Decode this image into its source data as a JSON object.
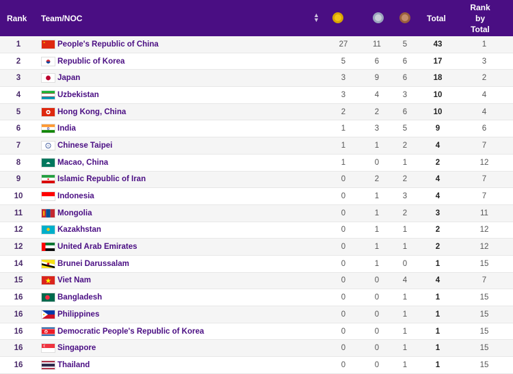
{
  "header": {
    "rank": "Rank",
    "team": "Team/NOC",
    "total": "Total",
    "rank_by_total_1": "Rank",
    "rank_by_total_2": "by",
    "rank_by_total_3": "Total",
    "gold_color": "#f2c315",
    "silver_color": "#c9cfd9",
    "bronze_color": "#c58d6b"
  },
  "rows": [
    {
      "rank": "1",
      "team": "People's Republic of China",
      "gold": "27",
      "silver": "11",
      "bronze": "5",
      "total": "43",
      "rbt": "1",
      "flag": "china"
    },
    {
      "rank": "2",
      "team": "Republic of Korea",
      "gold": "5",
      "silver": "6",
      "bronze": "6",
      "total": "17",
      "rbt": "3",
      "flag": "korea"
    },
    {
      "rank": "3",
      "team": "Japan",
      "gold": "3",
      "silver": "9",
      "bronze": "6",
      "total": "18",
      "rbt": "2",
      "flag": "japan"
    },
    {
      "rank": "4",
      "team": "Uzbekistan",
      "gold": "3",
      "silver": "4",
      "bronze": "3",
      "total": "10",
      "rbt": "4",
      "flag": "uzbekistan"
    },
    {
      "rank": "5",
      "team": "Hong Kong, China",
      "gold": "2",
      "silver": "2",
      "bronze": "6",
      "total": "10",
      "rbt": "4",
      "flag": "hongkong"
    },
    {
      "rank": "6",
      "team": "India",
      "gold": "1",
      "silver": "3",
      "bronze": "5",
      "total": "9",
      "rbt": "6",
      "flag": "india"
    },
    {
      "rank": "7",
      "team": "Chinese Taipei",
      "gold": "1",
      "silver": "1",
      "bronze": "2",
      "total": "4",
      "rbt": "7",
      "flag": "taipei"
    },
    {
      "rank": "8",
      "team": "Macao, China",
      "gold": "1",
      "silver": "0",
      "bronze": "1",
      "total": "2",
      "rbt": "12",
      "flag": "macao"
    },
    {
      "rank": "9",
      "team": "Islamic Republic of Iran",
      "gold": "0",
      "silver": "2",
      "bronze": "2",
      "total": "4",
      "rbt": "7",
      "flag": "iran"
    },
    {
      "rank": "10",
      "team": "Indonesia",
      "gold": "0",
      "silver": "1",
      "bronze": "3",
      "total": "4",
      "rbt": "7",
      "flag": "indonesia"
    },
    {
      "rank": "11",
      "team": "Mongolia",
      "gold": "0",
      "silver": "1",
      "bronze": "2",
      "total": "3",
      "rbt": "11",
      "flag": "mongolia"
    },
    {
      "rank": "12",
      "team": "Kazakhstan",
      "gold": "0",
      "silver": "1",
      "bronze": "1",
      "total": "2",
      "rbt": "12",
      "flag": "kazakhstan"
    },
    {
      "rank": "12",
      "team": "United Arab Emirates",
      "gold": "0",
      "silver": "1",
      "bronze": "1",
      "total": "2",
      "rbt": "12",
      "flag": "uae"
    },
    {
      "rank": "14",
      "team": "Brunei Darussalam",
      "gold": "0",
      "silver": "1",
      "bronze": "0",
      "total": "1",
      "rbt": "15",
      "flag": "brunei"
    },
    {
      "rank": "15",
      "team": "Viet Nam",
      "gold": "0",
      "silver": "0",
      "bronze": "4",
      "total": "4",
      "rbt": "7",
      "flag": "vietnam"
    },
    {
      "rank": "16",
      "team": "Bangladesh",
      "gold": "0",
      "silver": "0",
      "bronze": "1",
      "total": "1",
      "rbt": "15",
      "flag": "bangladesh"
    },
    {
      "rank": "16",
      "team": "Philippines",
      "gold": "0",
      "silver": "0",
      "bronze": "1",
      "total": "1",
      "rbt": "15",
      "flag": "philippines"
    },
    {
      "rank": "16",
      "team": "Democratic People's Republic of Korea",
      "gold": "0",
      "silver": "0",
      "bronze": "1",
      "total": "1",
      "rbt": "15",
      "flag": "dprk"
    },
    {
      "rank": "16",
      "team": "Singapore",
      "gold": "0",
      "silver": "0",
      "bronze": "1",
      "total": "1",
      "rbt": "15",
      "flag": "singapore"
    },
    {
      "rank": "16",
      "team": "Thailand",
      "gold": "0",
      "silver": "0",
      "bronze": "1",
      "total": "1",
      "rbt": "15",
      "flag": "thailand"
    }
  ]
}
